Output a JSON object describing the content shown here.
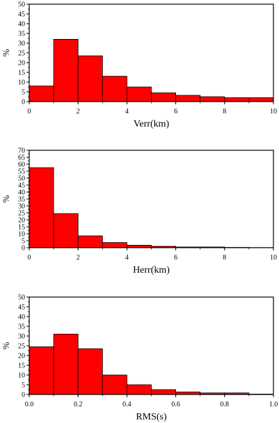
{
  "chart_data": [
    {
      "type": "bar",
      "title": "",
      "xlabel": "Verr(km)",
      "ylabel": "%",
      "xlim": [
        0,
        10
      ],
      "ylim": [
        0,
        50
      ],
      "bin_width": 1,
      "bins": [
        0,
        1,
        2,
        3,
        4,
        5,
        6,
        7,
        8,
        9
      ],
      "values": [
        8,
        32,
        23.5,
        13,
        7.5,
        4.5,
        3.2,
        2.5,
        2,
        2
      ],
      "x_ticks": [
        "0",
        "2",
        "4",
        "6",
        "8",
        "10"
      ],
      "y_ticks": [
        "0",
        "5",
        "10",
        "15",
        "20",
        "25",
        "30",
        "35",
        "40",
        "45",
        "50"
      ],
      "bar_color": "#ff0000"
    },
    {
      "type": "bar",
      "title": "",
      "xlabel": "Herr(km)",
      "ylabel": "%",
      "xlim": [
        0,
        10
      ],
      "ylim": [
        0,
        70
      ],
      "bin_width": 1,
      "bins": [
        0,
        1,
        2,
        3,
        4,
        5,
        6,
        7,
        8,
        9
      ],
      "values": [
        57.5,
        24.5,
        8.5,
        3.7,
        1.8,
        1,
        0.5,
        0.5,
        0.2,
        0.1
      ],
      "x_ticks": [
        "0",
        "2",
        "4",
        "6",
        "8",
        "10"
      ],
      "y_ticks": [
        "0",
        "5",
        "10",
        "15",
        "20",
        "25",
        "30",
        "35",
        "40",
        "45",
        "50",
        "55",
        "60",
        "65",
        "70"
      ],
      "bar_color": "#ff0000"
    },
    {
      "type": "bar",
      "title": "",
      "xlabel": "RMS(s)",
      "ylabel": "%",
      "xlim": [
        0,
        1
      ],
      "ylim": [
        0,
        50
      ],
      "bin_width": 0.1,
      "bins": [
        0,
        0.1,
        0.2,
        0.3,
        0.4,
        0.5,
        0.6,
        0.7,
        0.8,
        0.9
      ],
      "values": [
        24.5,
        31,
        23.5,
        10,
        5,
        2.5,
        1.3,
        0.8,
        0.8,
        0.2
      ],
      "x_ticks": [
        "0.0",
        "0.2",
        "0.4",
        "0.6",
        "0.8",
        "1.0"
      ],
      "y_ticks": [
        "0",
        "5",
        "10",
        "15",
        "20",
        "25",
        "30",
        "35",
        "40",
        "45",
        "50"
      ],
      "bar_color": "#ff0000"
    }
  ]
}
